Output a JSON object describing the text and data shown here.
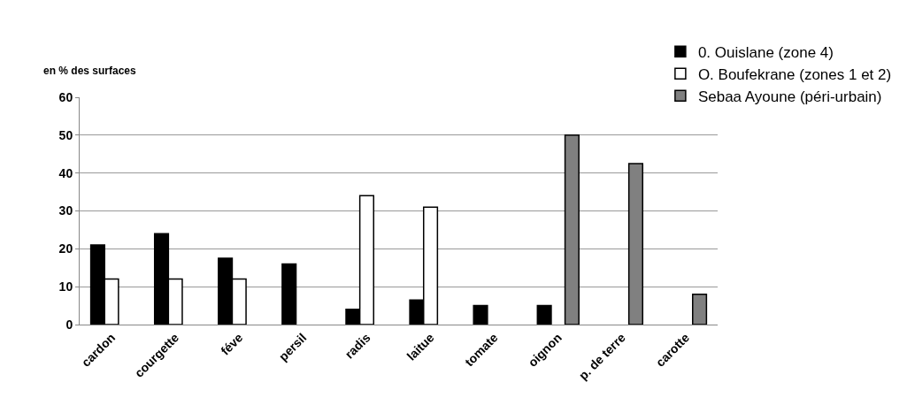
{
  "chart_data": {
    "type": "bar",
    "ylabel": "en % des surfaces",
    "categories": [
      "cardon",
      "courgette",
      "féve",
      "persil",
      "radis",
      "laitue",
      "tomate",
      "oignon",
      "p. de terre",
      "carotte"
    ],
    "series": [
      {
        "name": "0. Ouislane (zone 4)",
        "color": "#000000",
        "values": [
          21,
          24,
          17.5,
          16,
          4,
          6.5,
          5,
          5,
          null,
          null
        ]
      },
      {
        "name": "O. Boufekrane (zones 1 et 2)",
        "color": "#ffffff",
        "values": [
          12,
          12,
          12,
          null,
          34,
          31,
          null,
          null,
          null,
          null
        ]
      },
      {
        "name": "Sebaa Ayoune (péri-urbain)",
        "color": "#808080",
        "values": [
          null,
          null,
          null,
          null,
          null,
          null,
          null,
          50,
          42.5,
          8
        ]
      }
    ],
    "ylim": [
      0,
      60
    ],
    "yticks": [
      0,
      10,
      20,
      30,
      40,
      50,
      60
    ],
    "grid": "y",
    "legend": "top right"
  }
}
